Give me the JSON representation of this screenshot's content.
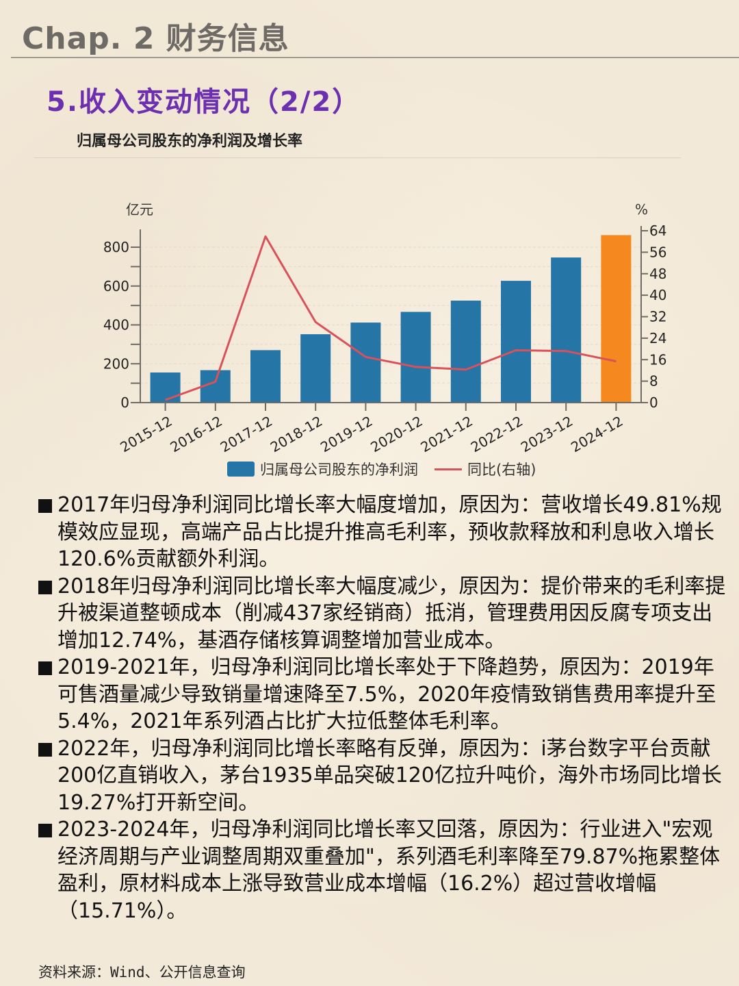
{
  "header": {
    "chapter_title": "Chap. 2 财务信息",
    "section_title": "5.收入变动情况（2/2）"
  },
  "chart_title": "归属母公司股东的净利润及增长率",
  "chart_data": {
    "type": "bar+line",
    "title": "归属母公司股东的净利润及增长率",
    "categories": [
      "2015-12",
      "2016-12",
      "2017-12",
      "2018-12",
      "2019-12",
      "2020-12",
      "2021-12",
      "2022-12",
      "2023-12",
      "2024-12"
    ],
    "series": [
      {
        "name": "归属母公司股东的净利润",
        "type": "bar",
        "axis": "left",
        "unit": "亿元",
        "color": "#2575a7",
        "highlight_color": "#f5891f",
        "highlight_index": 9,
        "values": [
          155,
          167,
          270,
          352,
          412,
          467,
          525,
          627,
          747,
          862
        ]
      },
      {
        "name": "同比(右轴)",
        "type": "line",
        "axis": "right",
        "unit": "%",
        "color": "#d9515a",
        "values": [
          1.0,
          7.8,
          61.9,
          30.0,
          17.0,
          13.3,
          12.3,
          19.5,
          19.2,
          15.4
        ]
      }
    ],
    "ylabel_left": "亿元",
    "ylabel_right": "%",
    "ylim_left": [
      0,
      880
    ],
    "yticks_left": [
      0,
      200,
      400,
      600,
      800
    ],
    "ylim_right": [
      0,
      64
    ],
    "yticks_right": [
      0,
      8,
      16,
      24,
      32,
      40,
      48,
      56,
      64
    ],
    "grid": true,
    "legend_position": "bottom"
  },
  "legend": {
    "bar_label": "归属母公司股东的净利润",
    "line_label": "同比(右轴)"
  },
  "bullets": [
    {
      "text": "2017年归母净利润同比增长率大幅度增加，原因为：营收增长49.81%规模效应显现，高端产品占比提升推高毛利率，预收款释放和利息收入增长120.6%贡献额外利润。"
    },
    {
      "text": "2018年归母净利润同比增长率大幅度减少，原因为：提价带来的毛利率提升被渠道整顿成本（削减437家经销商）抵消，管理费用因反腐专项支出增加12.74%，基酒存储核算调整增加营业成本。"
    },
    {
      "text": "2019-2021年，归母净利润同比增长率处于下降趋势，原因为：2019年可售酒量减少导致销量增速降至7.5%，2020年疫情致销售费用率提升至5.4%，2021年系列酒占比扩大拉低整体毛利率。"
    },
    {
      "text": "2022年，归母净利润同比增长率略有反弹，原因为：i茅台数字平台贡献200亿直销收入，茅台1935单品突破120亿拉升吨价，海外市场同比增长19.27%打开新空间。"
    },
    {
      "text": "2023-2024年，归母净利润同比增长率又回落，原因为：行业进入\"宏观经济周期与产业调整周期双重叠加\"，系列酒毛利率降至79.87%拖累整体盈利，原材料成本上涨导致营业成本增幅（16.2%）超过营收增幅（15.71%）。"
    }
  ],
  "source": {
    "label": "资料来源：",
    "value": "Wind、公开信息查询"
  }
}
